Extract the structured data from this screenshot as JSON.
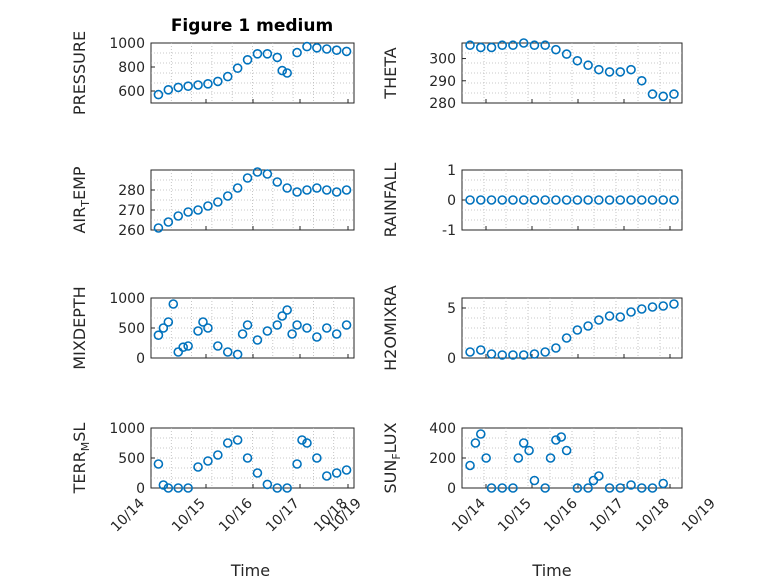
{
  "figure_title": "Figure 1 medium",
  "chart_data": {
    "type": "scatter",
    "title": "Figure 1 medium",
    "marker_color": "#0072BD",
    "x_ticks": [
      "10/14",
      "10/15",
      "10/16",
      "10/17",
      "10/18",
      "10/19"
    ],
    "x_ticks_day": [
      14,
      15,
      16,
      17,
      18,
      19
    ],
    "xlim": [
      14,
      19
    ],
    "xlabel": "Time",
    "grid": "minor-dotted",
    "panels": [
      {
        "id": "pressure",
        "ylabel": "PRESSURE",
        "ylabel_sub": "",
        "ylim": [
          500,
          1000
        ],
        "yticks": [
          600,
          800,
          1000
        ],
        "x": [
          14.6,
          14.8,
          15.0,
          15.2,
          15.4,
          15.6,
          15.8,
          16.0,
          16.2,
          16.4,
          16.6,
          16.8,
          17.0,
          17.1,
          17.2,
          17.4,
          17.6,
          17.8,
          18.0,
          18.2,
          18.4
        ],
        "y": [
          570,
          610,
          630,
          640,
          650,
          660,
          680,
          720,
          790,
          860,
          910,
          910,
          880,
          770,
          750,
          920,
          970,
          960,
          950,
          940,
          930
        ]
      },
      {
        "id": "theta",
        "ylabel": "THETA",
        "ylabel_sub": "",
        "ylim": [
          280,
          307
        ],
        "yticks": [
          280,
          290,
          300
        ],
        "x": [
          14.6,
          14.8,
          15.0,
          15.2,
          15.4,
          15.6,
          15.8,
          16.0,
          16.2,
          16.4,
          16.6,
          16.8,
          17.0,
          17.2,
          17.4,
          17.6,
          17.8,
          18.0,
          18.2,
          18.4
        ],
        "y": [
          306,
          305,
          305,
          306,
          306,
          307,
          306,
          306,
          304,
          302,
          299,
          297,
          295,
          294,
          294,
          295,
          290,
          284,
          283,
          284
        ]
      },
      {
        "id": "airtemp",
        "ylabel": "AIR",
        "ylabel_sub": "T",
        "ylabel_tail": "EMP",
        "ylim": [
          260,
          290
        ],
        "yticks": [
          260,
          270,
          280
        ],
        "x": [
          14.6,
          14.8,
          15.0,
          15.2,
          15.4,
          15.6,
          15.8,
          16.0,
          16.2,
          16.4,
          16.6,
          16.8,
          17.0,
          17.2,
          17.4,
          17.6,
          17.8,
          18.0,
          18.2,
          18.4
        ],
        "y": [
          261,
          264,
          267,
          269,
          270,
          272,
          274,
          277,
          281,
          286,
          289,
          288,
          284,
          281,
          279,
          280,
          281,
          280,
          279,
          280
        ]
      },
      {
        "id": "rainfall",
        "ylabel": "RAINFALL",
        "ylabel_sub": "",
        "ylim": [
          -1,
          1
        ],
        "yticks": [
          -1,
          0,
          1
        ],
        "x": [
          14.6,
          14.8,
          15.0,
          15.2,
          15.4,
          15.6,
          15.8,
          16.0,
          16.2,
          16.4,
          16.6,
          16.8,
          17.0,
          17.2,
          17.4,
          17.6,
          17.8,
          18.0,
          18.2,
          18.4
        ],
        "y": [
          0,
          0,
          0,
          0,
          0,
          0,
          0,
          0,
          0,
          0,
          0,
          0,
          0,
          0,
          0,
          0,
          0,
          0,
          0,
          0
        ]
      },
      {
        "id": "mixdepth",
        "ylabel": "MIXDEPTH",
        "ylabel_sub": "",
        "ylim": [
          0,
          1000
        ],
        "yticks": [
          0,
          500,
          1000
        ],
        "x": [
          14.6,
          14.7,
          14.8,
          14.9,
          15.0,
          15.1,
          15.2,
          15.4,
          15.5,
          15.6,
          15.8,
          16.0,
          16.2,
          16.3,
          16.4,
          16.6,
          16.8,
          17.0,
          17.1,
          17.2,
          17.3,
          17.4,
          17.6,
          17.8,
          18.0,
          18.2,
          18.4
        ],
        "y": [
          380,
          500,
          600,
          900,
          100,
          180,
          200,
          450,
          600,
          500,
          200,
          100,
          60,
          400,
          550,
          300,
          450,
          550,
          700,
          800,
          400,
          550,
          500,
          350,
          500,
          400,
          550
        ]
      },
      {
        "id": "h2omixra",
        "ylabel": "H2OMIXRA",
        "ylabel_sub": "",
        "ylim": [
          0,
          6
        ],
        "yticks": [
          0,
          5
        ],
        "x": [
          14.6,
          14.8,
          15.0,
          15.2,
          15.4,
          15.6,
          15.8,
          16.0,
          16.2,
          16.4,
          16.6,
          16.8,
          17.0,
          17.2,
          17.4,
          17.6,
          17.8,
          18.0,
          18.2,
          18.4
        ],
        "y": [
          0.6,
          0.8,
          0.4,
          0.3,
          0.3,
          0.3,
          0.4,
          0.6,
          1.0,
          2.0,
          2.8,
          3.2,
          3.8,
          4.2,
          4.1,
          4.6,
          4.9,
          5.1,
          5.2,
          5.4
        ]
      },
      {
        "id": "terrmsl",
        "ylabel": "TERR",
        "ylabel_sub": "M",
        "ylabel_tail": "SL",
        "ylim": [
          0,
          1000
        ],
        "yticks": [
          0,
          500,
          1000
        ],
        "x": [
          14.6,
          14.7,
          14.8,
          15.0,
          15.2,
          15.4,
          15.6,
          15.8,
          16.0,
          16.2,
          16.4,
          16.6,
          16.8,
          17.0,
          17.2,
          17.4,
          17.5,
          17.6,
          17.8,
          18.0,
          18.2,
          18.4
        ],
        "y": [
          400,
          50,
          0,
          0,
          0,
          350,
          450,
          550,
          750,
          800,
          500,
          250,
          60,
          0,
          0,
          400,
          800,
          750,
          500,
          200,
          250,
          300
        ]
      },
      {
        "id": "sunflux",
        "ylabel": "SUN",
        "ylabel_sub": "F",
        "ylabel_tail": "LUX",
        "ylim": [
          0,
          400
        ],
        "yticks": [
          0,
          200,
          400
        ],
        "x": [
          14.6,
          14.7,
          14.8,
          14.9,
          15.0,
          15.2,
          15.4,
          15.5,
          15.6,
          15.7,
          15.8,
          16.0,
          16.1,
          16.2,
          16.3,
          16.4,
          16.6,
          16.8,
          16.9,
          17.0,
          17.2,
          17.4,
          17.6,
          17.8,
          18.0,
          18.2
        ],
        "y": [
          150,
          300,
          360,
          200,
          0,
          0,
          0,
          200,
          300,
          250,
          50,
          0,
          200,
          320,
          340,
          250,
          0,
          0,
          50,
          80,
          0,
          0,
          20,
          0,
          0,
          30
        ]
      }
    ]
  }
}
